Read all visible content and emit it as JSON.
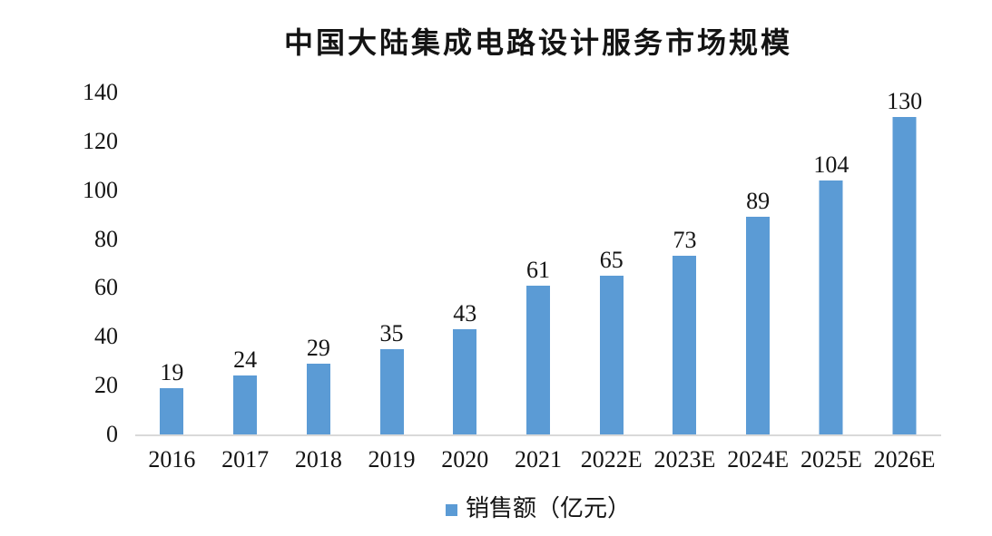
{
  "title": "中国大陆集成电路设计服务市场规模",
  "legend": {
    "label": "销售额（亿元）"
  },
  "colors": {
    "bar": "#5B9BD5",
    "axis_line": "#D9D9D9",
    "text": "#141414"
  },
  "chart_data": {
    "type": "bar",
    "title": "中国大陆集成电路设计服务市场规模",
    "categories": [
      "2016",
      "2017",
      "2018",
      "2019",
      "2020",
      "2021",
      "2022E",
      "2023E",
      "2024E",
      "2025E",
      "2026E"
    ],
    "series": [
      {
        "name": "销售额（亿元）",
        "values": [
          19,
          24,
          29,
          35,
          43,
          61,
          65,
          73,
          89,
          104,
          130
        ]
      }
    ],
    "xlabel": "",
    "ylabel": "",
    "ylim": [
      0,
      140
    ],
    "yticks": [
      0,
      20,
      40,
      60,
      80,
      100,
      120,
      140
    ],
    "grid": false,
    "data_labels": true,
    "legend_position": "bottom",
    "bar_color": "#5B9BD5"
  }
}
